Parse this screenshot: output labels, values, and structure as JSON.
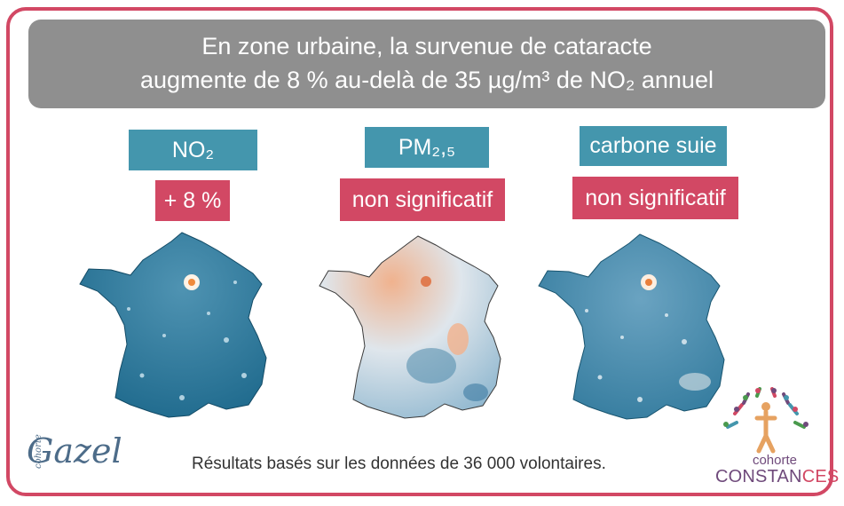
{
  "banner": {
    "line1": "En zone urbaine, la survenue de cataracte",
    "line2": "augmente de 8 % au-delà de 35 µg/m³ de NO₂ annuel"
  },
  "columns": [
    {
      "pollutant": "NO₂",
      "result": "+ 8 %",
      "map": "no2-map"
    },
    {
      "pollutant": "PM₂,₅",
      "result": "non significatif",
      "map": "pm25-map"
    },
    {
      "pollutant": "carbone suie",
      "result": "non significatif",
      "map": "black-carbon-map"
    }
  ],
  "footer": {
    "text": "Résultats basés sur les données de 36 000 volontaires."
  },
  "logos": {
    "gazel_small": "cohorte",
    "gazel": "Gazel",
    "constances_top": "cohorte",
    "constances_main_a": "CONSTAN",
    "constances_main_b": "CES"
  },
  "colors": {
    "accent_red": "#d24864",
    "teal": "#4496ad",
    "banner_grey": "#8f8f8f"
  }
}
